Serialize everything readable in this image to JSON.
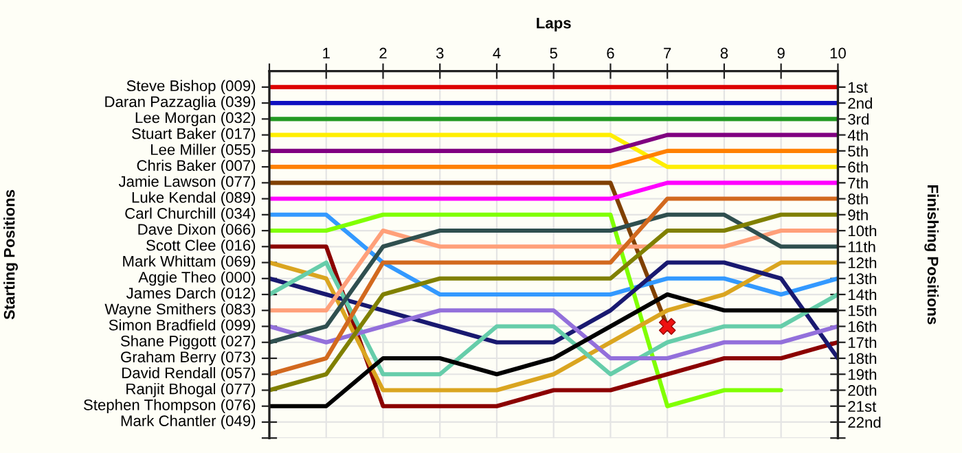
{
  "chart_data": {
    "type": "line",
    "xlabel": "Laps",
    "ylabel": "Finishing Positions",
    "x": [
      0,
      1,
      2,
      3,
      4,
      5,
      6,
      7,
      8,
      9,
      10
    ],
    "xlim": [
      0,
      10
    ],
    "xticks": [
      {
        "value": 0,
        "label": null
      },
      1,
      2,
      3,
      4,
      5,
      6,
      7,
      8,
      9,
      10
    ],
    "annotations": [
      "Starting Positions",
      "Steve Bishop (009)",
      "Daran Pazzaglia (039)",
      "Lee Morgan (032)",
      "Stuart Baker (017)",
      "Lee Miller (055)",
      "Chris Baker (007)",
      "Jamie Lawson (077)",
      "Luke Kendal (089)",
      "Carl Churchill (034)",
      "Dave Dixon (066)",
      "Scott Clee (016)",
      "Mark Whittam (069)",
      "Aggie Theo (000)",
      "James Darch (012)",
      "Wayne Smithers (083)",
      "Simon Bradfield (099)",
      "Shane Piggott (027)",
      "Graham Berry (073)",
      "David Rendall (057)",
      "Ranjit Bhogal (077)",
      "Stephen Thompson (076)",
      "Mark Chantler (049)"
    ],
    "ylim": [
      23,
      0
    ],
    "yticks": [
      {
        "value": 1,
        "label": "1st"
      },
      {
        "value": 2,
        "label": "2nd"
      },
      {
        "value": 3,
        "label": "3rd"
      },
      {
        "value": 4,
        "label": "4th"
      },
      {
        "value": 5,
        "label": "5th"
      },
      {
        "value": 6,
        "label": "6th"
      },
      {
        "value": 7,
        "label": "7th"
      },
      {
        "value": 8,
        "label": "8th"
      },
      {
        "value": 9,
        "label": "9th"
      },
      {
        "value": 10,
        "label": "10th"
      },
      {
        "value": 11,
        "label": "11th"
      },
      {
        "value": 12,
        "label": "12th"
      },
      {
        "value": 13,
        "label": "13th"
      },
      {
        "value": 14,
        "label": "14th"
      },
      {
        "value": 15,
        "label": "15th"
      },
      {
        "value": 16,
        "label": "16th"
      },
      {
        "value": 17,
        "label": "17th"
      },
      {
        "value": 18,
        "label": "18th"
      },
      {
        "value": 19,
        "label": "19th"
      },
      {
        "value": 20,
        "label": "20th"
      },
      {
        "value": 21,
        "label": "21st"
      },
      {
        "value": 22,
        "label": "22nd"
      },
      {
        "value": 23,
        "label": null
      }
    ],
    "grid": true,
    "legend": false,
    "marker": "none",
    "line_style": "solid",
    "series": [
      {
        "color": "#dd0000",
        "values": [
          1,
          1,
          1,
          1,
          1,
          1,
          1,
          1,
          1,
          1,
          1
        ]
      },
      {
        "color": "#1010c0",
        "values": [
          2,
          2,
          2,
          2,
          2,
          2,
          2,
          2,
          2,
          2,
          2
        ]
      },
      {
        "color": "#229922",
        "values": [
          3,
          3,
          3,
          3,
          3,
          3,
          3,
          3,
          3,
          3,
          3
        ]
      },
      {
        "color": "#ffee00",
        "values": [
          4,
          4,
          4,
          4,
          4,
          4,
          4,
          6,
          6,
          6,
          6
        ]
      },
      {
        "color": "#800080",
        "values": [
          5,
          5,
          5,
          5,
          5,
          5,
          5,
          4,
          4,
          4,
          4
        ]
      },
      {
        "color": "#ff8000",
        "values": [
          6,
          6,
          6,
          6,
          6,
          6,
          6,
          5,
          5,
          5,
          5
        ]
      },
      {
        "color": "#804000",
        "values": [
          7,
          7,
          7,
          7,
          7,
          7,
          7,
          16,
          null,
          null,
          null
        ]
      },
      {
        "color": "#ff00ff",
        "values": [
          8,
          8,
          8,
          8,
          8,
          8,
          8,
          7,
          7,
          7,
          7
        ]
      },
      {
        "color": "#3399ff",
        "values": [
          9,
          9,
          12,
          14,
          14,
          14,
          14,
          13,
          13,
          14,
          13
        ]
      },
      {
        "color": "#80ff00",
        "values": [
          10,
          10,
          9,
          9,
          9,
          9,
          9,
          21,
          20,
          20,
          null
        ]
      },
      {
        "color": "#8b0000",
        "values": [
          11,
          11,
          21,
          21,
          21,
          20,
          20,
          19,
          18,
          18,
          17
        ]
      },
      {
        "color": "#daa520",
        "values": [
          12,
          13,
          20,
          20,
          20,
          19,
          17,
          15,
          14,
          12,
          12
        ]
      },
      {
        "color": "#191970",
        "values": [
          13,
          14,
          15,
          16,
          17,
          17,
          15,
          12,
          12,
          13,
          18
        ]
      },
      {
        "color": "#66cdaa",
        "values": [
          14,
          12,
          19,
          19,
          16,
          16,
          19,
          17,
          16,
          16,
          14
        ]
      },
      {
        "color": "#ffa07a",
        "values": [
          15,
          15,
          10,
          11,
          11,
          11,
          11,
          11,
          11,
          10,
          10
        ]
      },
      {
        "color": "#9370db",
        "values": [
          16,
          17,
          16,
          15,
          15,
          15,
          18,
          18,
          17,
          17,
          16
        ]
      },
      {
        "color": "#2f4f4f",
        "values": [
          17,
          16,
          11,
          10,
          10,
          10,
          10,
          9,
          9,
          11,
          11
        ]
      },
      {
        "color": "#d2691e",
        "values": [
          19,
          18,
          12,
          12,
          12,
          12,
          12,
          8,
          8,
          8,
          8
        ]
      },
      {
        "color": "#808000",
        "values": [
          20,
          19,
          14,
          13,
          13,
          13,
          13,
          10,
          10,
          9,
          9
        ]
      },
      {
        "color": "#000000",
        "values": [
          21,
          21,
          18,
          18,
          19,
          18,
          16,
          14,
          15,
          15,
          15
        ]
      },
      {
        "type": "scatter",
        "marker": "cross",
        "color": "#ee1111",
        "x": [
          7
        ],
        "values": [
          16
        ]
      }
    ]
  }
}
